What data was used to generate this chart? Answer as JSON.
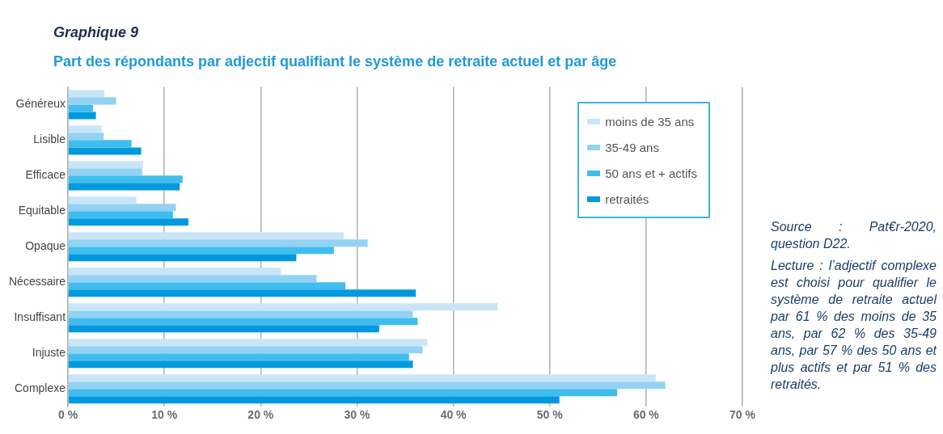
{
  "chart_data": {
    "type": "bar",
    "orientation": "horizontal",
    "title": "Graphique 9",
    "subtitle": "Part des répondants par adjectif qualifiant le système de retraite actuel et par âge",
    "categories": [
      "Généreux",
      "Lisible",
      "Efficace",
      "Equitable",
      "Opaque",
      "Nécessaire",
      "Insuffisant",
      "Injuste",
      "Complexe"
    ],
    "series": [
      {
        "name": "moins de 35 ans",
        "color": "#c9e6f8",
        "values": [
          3.8,
          3.5,
          7.8,
          7.1,
          28.6,
          22.1,
          44.6,
          37.3,
          61
        ]
      },
      {
        "name": "35-49 ans",
        "color": "#93d2f3",
        "values": [
          5.0,
          3.7,
          7.7,
          11.2,
          31.1,
          25.8,
          35.8,
          36.8,
          62
        ]
      },
      {
        "name": "50 ans et + actifs",
        "color": "#3fbdee",
        "values": [
          2.6,
          6.6,
          11.9,
          10.9,
          27.6,
          28.8,
          36.3,
          35.4,
          57
        ]
      },
      {
        "name": "retraités",
        "color": "#0099df",
        "values": [
          2.9,
          7.6,
          11.6,
          12.5,
          23.7,
          36.1,
          32.3,
          35.8,
          51
        ]
      }
    ],
    "xlim": [
      0,
      70
    ],
    "xticks": [
      {
        "value": 0,
        "label": "0 %"
      },
      {
        "value": 10,
        "label": "10 %"
      },
      {
        "value": 20,
        "label": "20 %"
      },
      {
        "value": 30,
        "label": "30 %"
      },
      {
        "value": 40,
        "label": "40 %"
      },
      {
        "value": 50,
        "label": "50 %"
      },
      {
        "value": 60,
        "label": "60 %"
      },
      {
        "value": 70,
        "label": "70 %"
      }
    ],
    "grid": "x",
    "legend": "top right",
    "annotations": [
      "Source : Pat€r-2020, question D22.",
      "Lecture : l’adjectif complexe est choisi pour qualifier le système de retraite actuel par 61 % des moins de 35 ans, par 62 % des 35-49 ans, par 57 % des 50 ans et plus actifs et par 51 % des retraités."
    ]
  }
}
